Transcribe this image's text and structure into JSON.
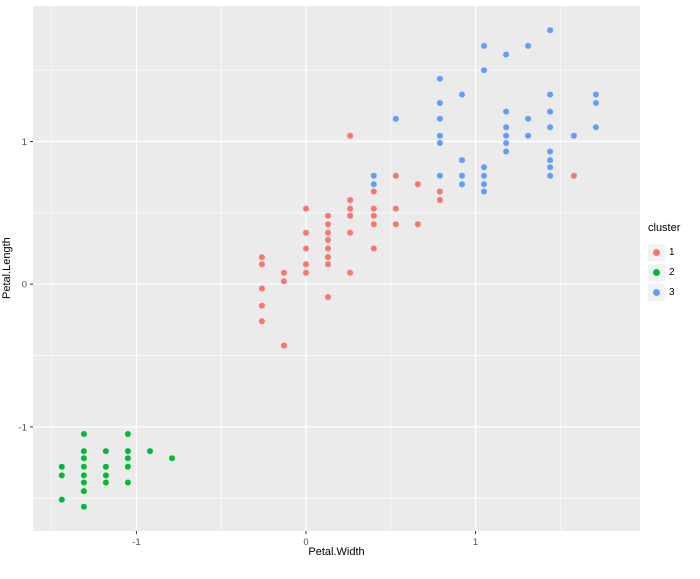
{
  "figure": {
    "background": "#FFFFFF",
    "panel_background": "#EBEBEB",
    "grid_color": "#FFFFFF",
    "tick_color": "#333333",
    "tick_label_color": "#4D4D4D",
    "point_radius": 3
  },
  "chart_data": {
    "type": "scatter",
    "title": "",
    "xlabel": "Petal.Width",
    "ylabel": "Petal.Length",
    "xlim": [
      -1.61,
      1.97
    ],
    "ylim": [
      -1.73,
      1.95
    ],
    "grid": true,
    "x_ticks": [
      {
        "value": -1,
        "label": "-1"
      },
      {
        "value": 0,
        "label": "0"
      },
      {
        "value": 1,
        "label": "1"
      }
    ],
    "y_ticks": [
      {
        "value": -1,
        "label": "-1"
      },
      {
        "value": 0,
        "label": "0"
      },
      {
        "value": 1,
        "label": "1"
      }
    ],
    "x_minor": [
      -1.5,
      -0.5,
      0.5,
      1.5
    ],
    "y_minor": [
      -1.5,
      -0.5,
      0.5,
      1.5
    ],
    "legend": {
      "title": "cluster",
      "position": "right",
      "items": [
        {
          "label": "1",
          "color": "#F8766D"
        },
        {
          "label": "2",
          "color": "#00BA38"
        },
        {
          "label": "3",
          "color": "#619CFF"
        }
      ]
    },
    "series": [
      {
        "name": "1",
        "color": "#F8766D",
        "points": [
          [
            0.26,
            0.53
          ],
          [
            0.4,
            0.42
          ],
          [
            0.4,
            0.65
          ],
          [
            0.13,
            0.14
          ],
          [
            0.4,
            0.48
          ],
          [
            0.13,
            0.42
          ],
          [
            0.53,
            0.53
          ],
          [
            -0.26,
            -0.26
          ],
          [
            0.13,
            0.48
          ],
          [
            0.26,
            0.08
          ],
          [
            -0.26,
            -0.15
          ],
          [
            0.4,
            0.25
          ],
          [
            -0.26,
            0.14
          ],
          [
            0.13,
            -0.09
          ],
          [
            0.26,
            0.36
          ],
          [
            -0.26,
            0.19
          ],
          [
            -0.13,
            0.08
          ],
          [
            0.79,
            0.59
          ],
          [
            0.0,
            0.53
          ],
          [
            0.13,
            0.31
          ],
          [
            0.26,
            0.59
          ],
          [
            0.66,
            0.7
          ],
          [
            -0.13,
            0.02
          ],
          [
            -0.26,
            -0.03
          ],
          [
            0.0,
            0.08
          ],
          [
            0.53,
            0.76
          ],
          [
            0.53,
            0.42
          ],
          [
            0.4,
            0.53
          ],
          [
            0.13,
            0.36
          ],
          [
            0.13,
            0.19
          ],
          [
            0.0,
            0.36
          ],
          [
            0.26,
            0.48
          ],
          [
            0.0,
            0.14
          ],
          [
            0.13,
            0.25
          ],
          [
            0.0,
            0.25
          ],
          [
            -0.13,
            -0.43
          ],
          [
            0.66,
            0.42
          ],
          [
            0.26,
            1.04
          ],
          [
            0.79,
            0.65
          ],
          [
            1.58,
            0.76
          ]
        ]
      },
      {
        "name": "2",
        "color": "#00BA38",
        "points": [
          [
            -1.31,
            -1.34
          ],
          [
            -1.31,
            -1.39
          ],
          [
            -1.31,
            -1.28
          ],
          [
            -1.05,
            -1.17
          ],
          [
            -1.18,
            -1.34
          ],
          [
            -1.44,
            -1.28
          ],
          [
            -1.31,
            -1.22
          ],
          [
            -1.44,
            -1.34
          ],
          [
            -1.44,
            -1.51
          ],
          [
            -1.31,
            -1.45
          ],
          [
            -1.05,
            -1.28
          ],
          [
            -1.05,
            -1.39
          ],
          [
            -1.18,
            -1.17
          ],
          [
            -1.18,
            -1.28
          ],
          [
            -1.31,
            -1.17
          ],
          [
            -1.31,
            -1.56
          ],
          [
            -0.92,
            -1.17
          ],
          [
            -1.31,
            -1.05
          ],
          [
            -1.05,
            -1.22
          ],
          [
            -1.18,
            -1.39
          ],
          [
            -0.79,
            -1.22
          ],
          [
            -1.05,
            -1.05
          ]
        ]
      },
      {
        "name": "3",
        "color": "#619CFF",
        "points": [
          [
            1.71,
            1.27
          ],
          [
            0.92,
            0.76
          ],
          [
            1.18,
            1.21
          ],
          [
            0.79,
            1.04
          ],
          [
            1.31,
            1.16
          ],
          [
            1.18,
            1.61
          ],
          [
            0.79,
            1.44
          ],
          [
            0.79,
            1.16
          ],
          [
            1.71,
            1.33
          ],
          [
            1.05,
            0.76
          ],
          [
            0.92,
            0.87
          ],
          [
            1.18,
            0.99
          ],
          [
            1.05,
            0.7
          ],
          [
            1.44,
            0.87
          ],
          [
            0.79,
            0.99
          ],
          [
            1.31,
            1.67
          ],
          [
            1.44,
            1.78
          ],
          [
            0.4,
            0.7
          ],
          [
            1.44,
            1.1
          ],
          [
            1.05,
            0.65
          ],
          [
            1.05,
            1.67
          ],
          [
            1.18,
            1.1
          ],
          [
            0.79,
            1.27
          ],
          [
            1.18,
            1.04
          ],
          [
            0.53,
            1.16
          ],
          [
            0.92,
            1.33
          ],
          [
            1.05,
            1.5
          ],
          [
            1.31,
            1.04
          ],
          [
            0.4,
            0.76
          ],
          [
            1.44,
            1.33
          ],
          [
            1.58,
            1.04
          ],
          [
            1.18,
            0.93
          ],
          [
            1.44,
            0.76
          ],
          [
            1.44,
            1.21
          ],
          [
            1.71,
            1.1
          ],
          [
            1.44,
            0.82
          ],
          [
            0.92,
            0.7
          ],
          [
            1.05,
            0.82
          ],
          [
            1.44,
            0.93
          ],
          [
            0.79,
            0.76
          ]
        ]
      }
    ]
  }
}
